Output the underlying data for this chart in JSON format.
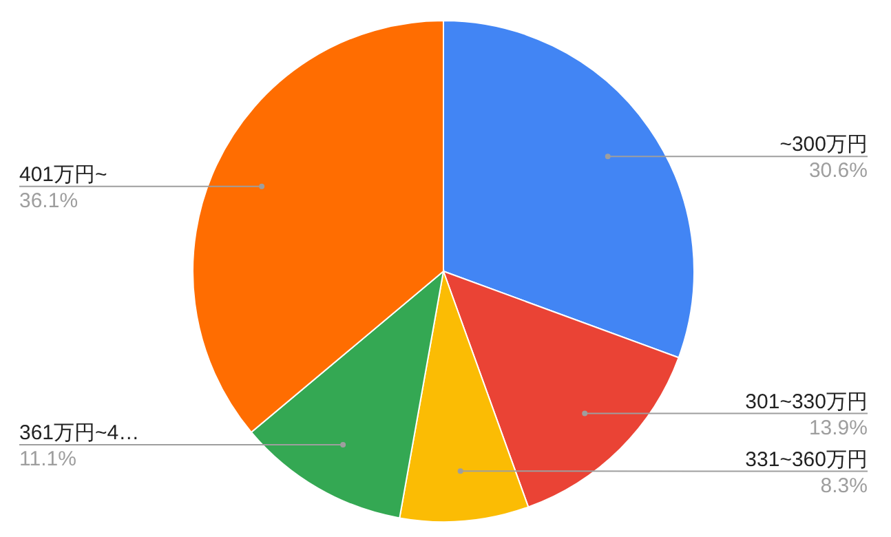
{
  "chart_data": {
    "type": "pie",
    "categories": [
      "~300万円",
      "301~330万円",
      "331~360万円",
      "361万円~4…",
      "401万円~"
    ],
    "values": [
      30.6,
      13.9,
      8.3,
      11.1,
      36.1
    ],
    "value_labels": [
      "30.6%",
      "13.9%",
      "8.3%",
      "11.1%",
      "36.1%"
    ],
    "colors": [
      "#4285f4",
      "#ea4335",
      "#fbbc04",
      "#34a853",
      "#ff6d01"
    ]
  }
}
